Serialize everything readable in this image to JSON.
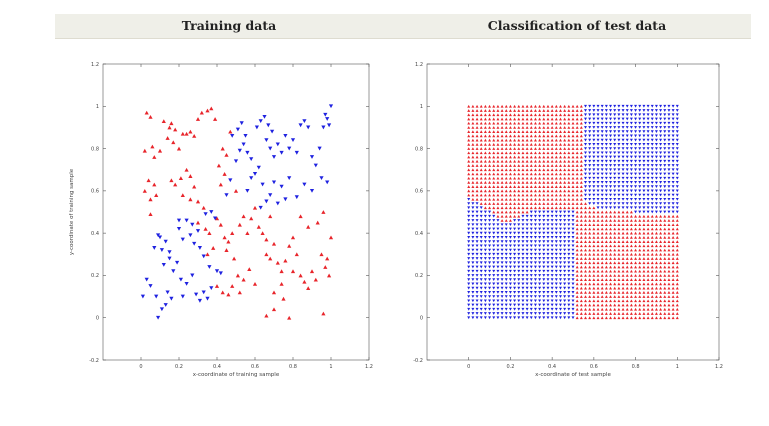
{
  "panels": {
    "left": {
      "title": "Training data"
    },
    "right": {
      "title": "Classification of test data"
    }
  },
  "colors": {
    "class_red": "#e8252b",
    "class_blue": "#1f22e0",
    "axis": "#555555"
  },
  "chart_data": [
    {
      "type": "scatter",
      "title": "Training data",
      "xlabel": "x-coordinate of training sample",
      "ylabel": "y-coordinate of training sample",
      "xlim": [
        -0.2,
        1.2
      ],
      "ylim": [
        -0.2,
        1.2
      ],
      "xticks": [
        "0",
        "0.2",
        "0.4",
        "0.6",
        "0.8",
        "1",
        "1.2"
      ],
      "yticks": [
        "-0.2",
        "0",
        "0.2",
        "0.4",
        "0.6",
        "0.8",
        "1",
        "1.2"
      ],
      "grid": false,
      "marker": "triangle",
      "series": [
        {
          "color": "#e8252b",
          "points": [
            [
              0.03,
              0.97
            ],
            [
              0.05,
              0.95
            ],
            [
              0.02,
              0.79
            ],
            [
              0.06,
              0.81
            ],
            [
              0.07,
              0.76
            ],
            [
              0.1,
              0.79
            ],
            [
              0.02,
              0.6
            ],
            [
              0.04,
              0.65
            ],
            [
              0.05,
              0.56
            ],
            [
              0.07,
              0.63
            ],
            [
              0.08,
              0.58
            ],
            [
              0.05,
              0.49
            ],
            [
              0.12,
              0.93
            ],
            [
              0.15,
              0.9
            ],
            [
              0.16,
              0.92
            ],
            [
              0.18,
              0.89
            ],
            [
              0.14,
              0.85
            ],
            [
              0.17,
              0.83
            ],
            [
              0.2,
              0.8
            ],
            [
              0.22,
              0.87
            ],
            [
              0.24,
              0.87
            ],
            [
              0.26,
              0.88
            ],
            [
              0.28,
              0.86
            ],
            [
              0.3,
              0.94
            ],
            [
              0.32,
              0.97
            ],
            [
              0.35,
              0.98
            ],
            [
              0.37,
              0.99
            ],
            [
              0.39,
              0.94
            ],
            [
              0.16,
              0.65
            ],
            [
              0.18,
              0.63
            ],
            [
              0.21,
              0.66
            ],
            [
              0.24,
              0.7
            ],
            [
              0.26,
              0.67
            ],
            [
              0.28,
              0.62
            ],
            [
              0.22,
              0.58
            ],
            [
              0.26,
              0.56
            ],
            [
              0.3,
              0.55
            ],
            [
              0.33,
              0.52
            ],
            [
              0.3,
              0.45
            ],
            [
              0.34,
              0.42
            ],
            [
              0.36,
              0.4
            ],
            [
              0.38,
              0.33
            ],
            [
              0.35,
              0.3
            ],
            [
              0.4,
              0.47
            ],
            [
              0.42,
              0.44
            ],
            [
              0.44,
              0.38
            ],
            [
              0.46,
              0.36
            ],
            [
              0.48,
              0.4
            ],
            [
              0.45,
              0.32
            ],
            [
              0.49,
              0.28
            ],
            [
              0.51,
              0.2
            ],
            [
              0.48,
              0.15
            ],
            [
              0.52,
              0.12
            ],
            [
              0.54,
              0.18
            ],
            [
              0.57,
              0.23
            ],
            [
              0.6,
              0.16
            ],
            [
              0.4,
              0.15
            ],
            [
              0.43,
              0.12
            ],
            [
              0.46,
              0.11
            ],
            [
              0.42,
              0.63
            ],
            [
              0.44,
              0.68
            ],
            [
              0.41,
              0.72
            ],
            [
              0.43,
              0.8
            ],
            [
              0.45,
              0.77
            ],
            [
              0.47,
              0.88
            ],
            [
              0.5,
              0.6
            ],
            [
              0.52,
              0.44
            ],
            [
              0.54,
              0.48
            ],
            [
              0.56,
              0.4
            ],
            [
              0.58,
              0.47
            ],
            [
              0.6,
              0.52
            ],
            [
              0.62,
              0.43
            ],
            [
              0.64,
              0.4
            ],
            [
              0.66,
              0.37
            ],
            [
              0.66,
              0.3
            ],
            [
              0.68,
              0.28
            ],
            [
              0.7,
              0.35
            ],
            [
              0.72,
              0.26
            ],
            [
              0.74,
              0.22
            ],
            [
              0.76,
              0.27
            ],
            [
              0.78,
              0.34
            ],
            [
              0.8,
              0.38
            ],
            [
              0.82,
              0.3
            ],
            [
              0.84,
              0.2
            ],
            [
              0.86,
              0.17
            ],
            [
              0.88,
              0.14
            ],
            [
              0.9,
              0.22
            ],
            [
              0.92,
              0.18
            ],
            [
              0.95,
              0.3
            ],
            [
              0.97,
              0.24
            ],
            [
              0.98,
              0.28
            ],
            [
              1.0,
              0.38
            ],
            [
              0.99,
              0.2
            ],
            [
              0.96,
              0.5
            ],
            [
              0.93,
              0.45
            ],
            [
              0.88,
              0.43
            ],
            [
              0.84,
              0.48
            ],
            [
              0.8,
              0.22
            ],
            [
              0.74,
              0.16
            ],
            [
              0.7,
              0.12
            ],
            [
              0.66,
              0.01
            ],
            [
              0.7,
              0.04
            ],
            [
              0.75,
              0.09
            ],
            [
              0.78,
              0.0
            ],
            [
              0.96,
              0.02
            ],
            [
              0.68,
              0.48
            ]
          ]
        },
        {
          "color": "#1f22e0",
          "points": [
            [
              0.01,
              0.1
            ],
            [
              0.03,
              0.18
            ],
            [
              0.05,
              0.15
            ],
            [
              0.08,
              0.1
            ],
            [
              0.09,
              0.0
            ],
            [
              0.11,
              0.04
            ],
            [
              0.13,
              0.06
            ],
            [
              0.14,
              0.12
            ],
            [
              0.16,
              0.09
            ],
            [
              0.12,
              0.25
            ],
            [
              0.15,
              0.28
            ],
            [
              0.17,
              0.22
            ],
            [
              0.1,
              0.38
            ],
            [
              0.13,
              0.36
            ],
            [
              0.15,
              0.31
            ],
            [
              0.07,
              0.33
            ],
            [
              0.09,
              0.39
            ],
            [
              0.11,
              0.32
            ],
            [
              0.19,
              0.26
            ],
            [
              0.21,
              0.18
            ],
            [
              0.22,
              0.1
            ],
            [
              0.24,
              0.16
            ],
            [
              0.27,
              0.2
            ],
            [
              0.29,
              0.11
            ],
            [
              0.31,
              0.08
            ],
            [
              0.33,
              0.12
            ],
            [
              0.35,
              0.09
            ],
            [
              0.37,
              0.14
            ],
            [
              0.4,
              0.22
            ],
            [
              0.42,
              0.21
            ],
            [
              0.2,
              0.42
            ],
            [
              0.22,
              0.37
            ],
            [
              0.26,
              0.39
            ],
            [
              0.28,
              0.35
            ],
            [
              0.31,
              0.33
            ],
            [
              0.33,
              0.29
            ],
            [
              0.36,
              0.24
            ],
            [
              0.2,
              0.46
            ],
            [
              0.24,
              0.46
            ],
            [
              0.27,
              0.44
            ],
            [
              0.3,
              0.41
            ],
            [
              0.34,
              0.49
            ],
            [
              0.37,
              0.5
            ],
            [
              0.39,
              0.47
            ],
            [
              0.45,
              0.58
            ],
            [
              0.47,
              0.65
            ],
            [
              0.5,
              0.74
            ],
            [
              0.52,
              0.79
            ],
            [
              0.54,
              0.82
            ],
            [
              0.56,
              0.78
            ],
            [
              0.58,
              0.75
            ],
            [
              0.48,
              0.86
            ],
            [
              0.51,
              0.89
            ],
            [
              0.53,
              0.92
            ],
            [
              0.55,
              0.86
            ],
            [
              0.61,
              0.9
            ],
            [
              0.63,
              0.93
            ],
            [
              0.65,
              0.95
            ],
            [
              0.67,
              0.91
            ],
            [
              0.69,
              0.88
            ],
            [
              0.66,
              0.84
            ],
            [
              0.68,
              0.8
            ],
            [
              0.7,
              0.76
            ],
            [
              0.72,
              0.82
            ],
            [
              0.74,
              0.78
            ],
            [
              0.76,
              0.86
            ],
            [
              0.78,
              0.8
            ],
            [
              0.8,
              0.84
            ],
            [
              0.82,
              0.78
            ],
            [
              0.84,
              0.91
            ],
            [
              0.86,
              0.93
            ],
            [
              0.88,
              0.9
            ],
            [
              0.9,
              0.76
            ],
            [
              0.92,
              0.72
            ],
            [
              0.94,
              0.8
            ],
            [
              0.96,
              0.9
            ],
            [
              0.97,
              0.96
            ],
            [
              0.98,
              0.94
            ],
            [
              1.0,
              1.0
            ],
            [
              0.99,
              0.91
            ],
            [
              0.98,
              0.64
            ],
            [
              0.95,
              0.66
            ],
            [
              0.9,
              0.6
            ],
            [
              0.86,
              0.63
            ],
            [
              0.82,
              0.57
            ],
            [
              0.78,
              0.66
            ],
            [
              0.74,
              0.62
            ],
            [
              0.7,
              0.64
            ],
            [
              0.68,
              0.58
            ],
            [
              0.66,
              0.55
            ],
            [
              0.63,
              0.52
            ],
            [
              0.72,
              0.54
            ],
            [
              0.76,
              0.56
            ],
            [
              0.64,
              0.63
            ],
            [
              0.62,
              0.71
            ],
            [
              0.6,
              0.68
            ],
            [
              0.58,
              0.66
            ],
            [
              0.56,
              0.6
            ]
          ]
        }
      ]
    },
    {
      "type": "scatter",
      "title": "Classification of test data",
      "xlabel": "x-coordinate of test sample",
      "ylabel": "y-coordinate of test sample",
      "xlim": [
        -0.2,
        1.2
      ],
      "ylim": [
        -0.2,
        1.2
      ],
      "xticks": [
        "0",
        "0.2",
        "0.4",
        "0.6",
        "0.8",
        "1",
        "1.2"
      ],
      "yticks": [
        "-0.2",
        "0",
        "0.2",
        "0.4",
        "0.6",
        "0.8",
        "1",
        "1.2"
      ],
      "grid": false,
      "marker": "triangle",
      "test_grid": {
        "x_range": [
          0,
          1
        ],
        "y_range": [
          0,
          1
        ],
        "step": 0.02
      },
      "regions": [
        {
          "color": "#1f22e0",
          "region": "bottom-left",
          "x_max": 0.5,
          "y_max_boundary": [
            [
              0.0,
              0.57
            ],
            [
              0.05,
              0.54
            ],
            [
              0.1,
              0.5
            ],
            [
              0.15,
              0.46
            ],
            [
              0.18,
              0.44
            ],
            [
              0.2,
              0.45
            ],
            [
              0.25,
              0.48
            ],
            [
              0.3,
              0.5
            ],
            [
              0.35,
              0.51
            ],
            [
              0.4,
              0.51
            ],
            [
              0.45,
              0.5
            ],
            [
              0.5,
              0.5
            ]
          ]
        },
        {
          "color": "#1f22e0",
          "region": "top-right",
          "x_min_boundary": [
            [
              1.0,
              0.55
            ],
            [
              0.96,
              0.55
            ],
            [
              0.9,
              0.53
            ],
            [
              0.85,
              0.51
            ],
            [
              0.8,
              0.5
            ],
            [
              0.75,
              0.49
            ],
            [
              0.7,
              0.49
            ],
            [
              0.66,
              0.5
            ],
            [
              0.62,
              0.52
            ],
            [
              0.58,
              0.54
            ],
            [
              0.56,
              0.56
            ]
          ],
          "x_edge_at_top": 0.55
        },
        {
          "color": "#e8252b",
          "region": "top-left"
        },
        {
          "color": "#e8252b",
          "region": "bottom-right"
        }
      ]
    }
  ]
}
